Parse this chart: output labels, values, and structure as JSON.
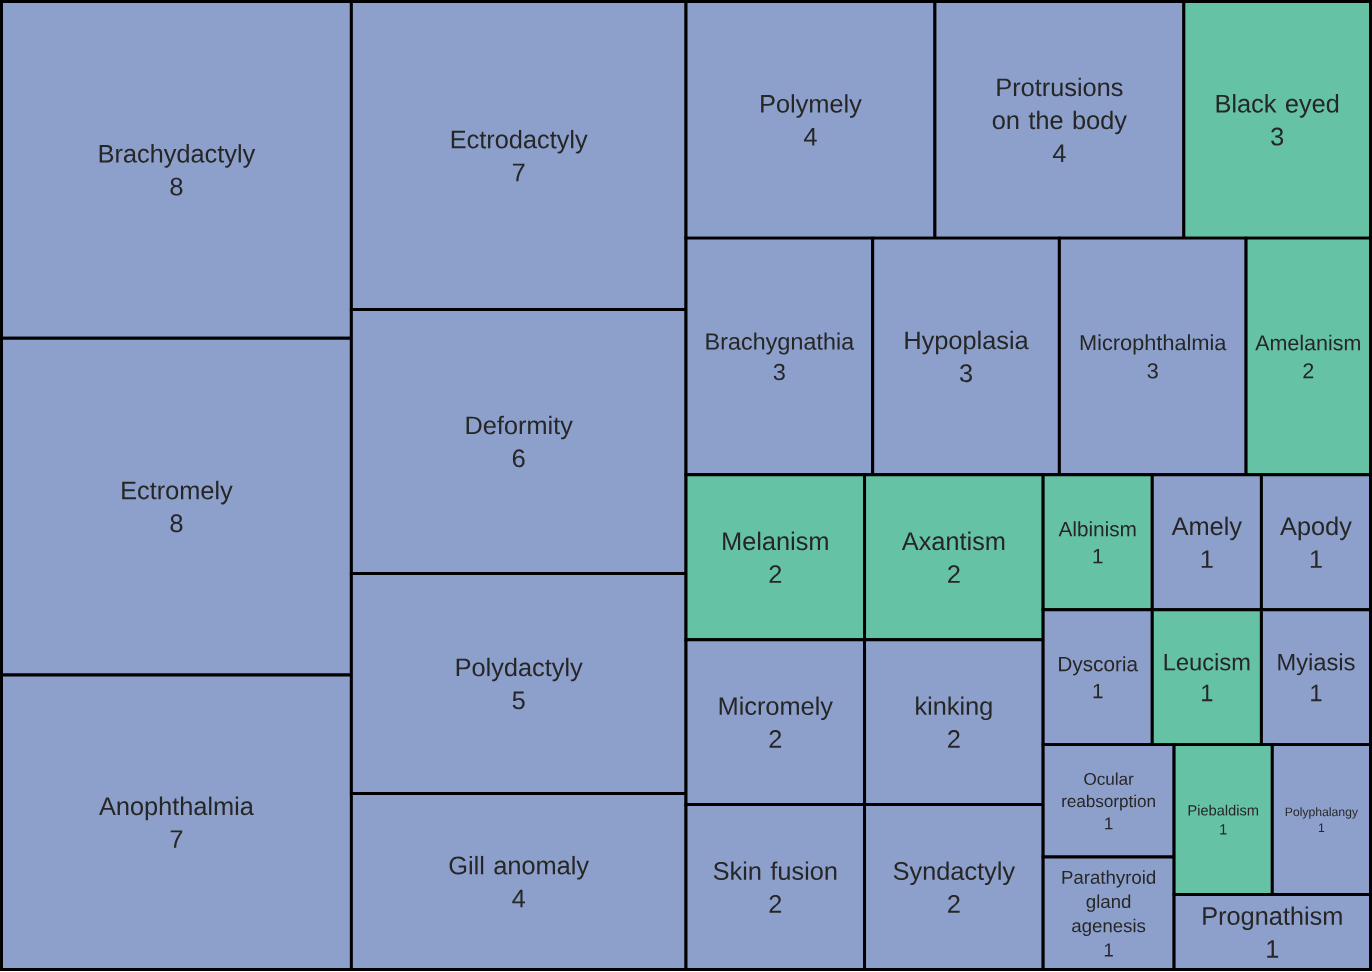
{
  "chart_data": {
    "type": "other",
    "data_labels": true,
    "categories": [
      "Brachydactyly",
      "Ectromely",
      "Anophthalmia",
      "Ectrodactyly",
      "Deformity",
      "Polydactyly",
      "Gill anomaly",
      "Polymely",
      "Protrusions on the body",
      "Black eyed",
      "Brachygnathia",
      "Hypoplasia",
      "Microphthalmia",
      "Amelanism",
      "Melanism",
      "Micromely",
      "Skin fusion",
      "Axantism",
      "kinking",
      "Syndactyly",
      "Albinism",
      "Amely",
      "Apody",
      "Dyscoria",
      "Leucism",
      "Myiasis",
      "Ocular reabsorption",
      "Parathyroid gland agenesis",
      "Piebaldism",
      "Polyphalangy",
      "Prognathism"
    ],
    "values": [
      8,
      8,
      7,
      7,
      6,
      5,
      4,
      4,
      4,
      3,
      3,
      3,
      3,
      2,
      2,
      2,
      2,
      2,
      2,
      2,
      1,
      1,
      1,
      1,
      1,
      1,
      1,
      1,
      1,
      1,
      1
    ],
    "colors": [
      "#8da0cb",
      "#8da0cb",
      "#8da0cb",
      "#8da0cb",
      "#8da0cb",
      "#8da0cb",
      "#8da0cb",
      "#8da0cb",
      "#8da0cb",
      "#66c2a5",
      "#8da0cb",
      "#8da0cb",
      "#8da0cb",
      "#66c2a5",
      "#66c2a5",
      "#8da0cb",
      "#8da0cb",
      "#66c2a5",
      "#8da0cb",
      "#8da0cb",
      "#66c2a5",
      "#8da0cb",
      "#8da0cb",
      "#8da0cb",
      "#66c2a5",
      "#8da0cb",
      "#8da0cb",
      "#8da0cb",
      "#66c2a5",
      "#8da0cb",
      "#8da0cb"
    ]
  }
}
